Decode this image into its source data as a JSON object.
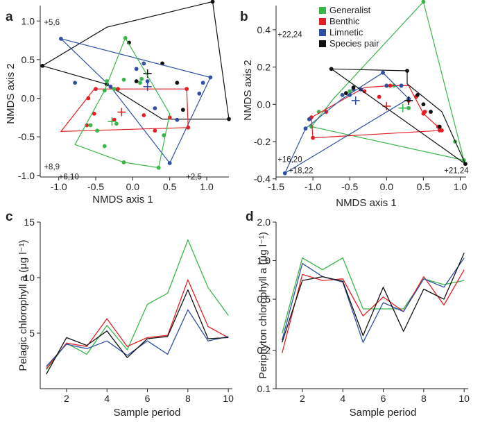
{
  "colors": {
    "Generalist": "#3ab54a",
    "Benthic": "#e31e24",
    "Limnetic": "#2e4fa3",
    "Species pair": "#111111"
  },
  "chart_data": [
    {
      "id": "a",
      "type": "scatter",
      "panel_label": "a",
      "xlabel": "NMDS axis 1",
      "ylabel": "NMDS axis 2",
      "xlim": [
        -1.25,
        1.3
      ],
      "ylim": [
        -1.02,
        1.2
      ],
      "xticks": [
        -1.0,
        -0.5,
        0.0,
        0.5,
        1.0
      ],
      "yticks": [
        -1.0,
        -0.5,
        0.0,
        0.5,
        1.0
      ],
      "annotations": [
        {
          "text": "+5,6",
          "x": -1.2,
          "y": 0.95
        },
        {
          "text": "+8,9",
          "x": -1.2,
          "y": -0.92
        },
        {
          "text": "+6,10",
          "x": -1.0,
          "y": -1.05
        },
        {
          "text": "+2,5",
          "x": 0.72,
          "y": -1.05
        }
      ],
      "series": [
        {
          "name": "Species pair",
          "points": [
            [
              -1.22,
              0.42
            ],
            [
              -0.35,
              0.18
            ],
            [
              -0.05,
              0.72
            ],
            [
              0.05,
              0.22
            ],
            [
              0.4,
              0.45
            ],
            [
              0.6,
              0.2
            ],
            [
              0.68,
              -0.15
            ],
            [
              1.08,
              1.25
            ],
            [
              1.3,
              -0.27
            ]
          ],
          "hull": [
            [
              -1.22,
              0.42
            ],
            [
              -0.35,
              0.92
            ],
            [
              1.08,
              1.25
            ],
            [
              1.3,
              -0.27
            ],
            [
              0.4,
              -0.27
            ],
            [
              -0.35,
              0.18
            ]
          ],
          "centroid": [
            0.2,
            0.32
          ]
        },
        {
          "name": "Limnetic",
          "points": [
            [
              -0.97,
              0.77
            ],
            [
              -0.78,
              0.2
            ],
            [
              -0.3,
              0.15
            ],
            [
              0.05,
              0.38
            ],
            [
              0.15,
              0.45
            ],
            [
              0.2,
              0.22
            ],
            [
              0.3,
              -0.13
            ],
            [
              0.6,
              -0.28
            ],
            [
              0.9,
              0.06
            ],
            [
              1.05,
              0.27
            ],
            [
              0.95,
              0.2
            ],
            [
              0.5,
              -0.84
            ]
          ],
          "hull": [
            [
              -0.97,
              0.77
            ],
            [
              1.05,
              0.27
            ],
            [
              0.5,
              -0.84
            ],
            [
              -0.3,
              0.15
            ]
          ],
          "centroid": [
            0.2,
            0.15
          ]
        },
        {
          "name": "Benthic",
          "points": [
            [
              -0.5,
              0.12
            ],
            [
              -0.6,
              0.0
            ],
            [
              -0.52,
              -0.2
            ],
            [
              -0.25,
              -0.28
            ],
            [
              -0.2,
              0.12
            ],
            [
              0.15,
              -0.22
            ],
            [
              0.3,
              -0.42
            ],
            [
              0.5,
              -0.25
            ],
            [
              0.75,
              -0.38
            ],
            [
              0.73,
              0.12
            ],
            [
              -0.62,
              -0.35
            ]
          ],
          "hull": [
            [
              -0.5,
              0.12
            ],
            [
              0.73,
              0.12
            ],
            [
              0.75,
              -0.38
            ],
            [
              -0.97,
              -0.43
            ],
            [
              -0.52,
              0.12
            ]
          ],
          "centroid": [
            -0.15,
            -0.18
          ]
        },
        {
          "name": "Generalist",
          "points": [
            [
              -0.35,
              0.22
            ],
            [
              -0.25,
              0.12
            ],
            [
              -0.12,
              0.24
            ],
            [
              0.12,
              0.25
            ],
            [
              -0.48,
              -0.42
            ],
            [
              -0.38,
              -0.62
            ],
            [
              -0.22,
              -0.33
            ],
            [
              -0.12,
              -0.83
            ],
            [
              0.1,
              0.2
            ],
            [
              0.35,
              -0.9
            ],
            [
              0.42,
              -0.48
            ],
            [
              -0.1,
              0.78
            ],
            [
              -0.57,
              -0.35
            ],
            [
              -0.38,
              0.1
            ]
          ],
          "hull": [
            [
              -0.1,
              0.78
            ],
            [
              0.5,
              -0.2
            ],
            [
              0.35,
              -0.9
            ],
            [
              -0.12,
              -0.83
            ],
            [
              -0.78,
              -0.6
            ],
            [
              -0.38,
              0.1
            ]
          ],
          "centroid": [
            -0.28,
            -0.3
          ]
        }
      ]
    },
    {
      "id": "b",
      "type": "scatter",
      "panel_label": "b",
      "xlabel": "NMDS axis 1",
      "ylabel": "NMDS axis 2",
      "xlim": [
        -1.5,
        1.08
      ],
      "ylim": [
        -0.39,
        0.53
      ],
      "xticks": [
        -1.5,
        -1.0,
        -0.5,
        0.0,
        0.5,
        1.0
      ],
      "yticks": [
        -0.4,
        -0.2,
        0.0,
        0.2,
        0.4
      ],
      "legend": {
        "position": "top",
        "entries": [
          "Generalist",
          "Benthic",
          "Limnetic",
          "Species pair"
        ]
      },
      "annotations": [
        {
          "text": "+22,24",
          "x": -1.48,
          "y": 0.36
        },
        {
          "text": "+16,20",
          "x": -1.48,
          "y": -0.31
        },
        {
          "text": "+18,22",
          "x": -1.33,
          "y": -0.37
        },
        {
          "text": "+21,24",
          "x": 0.78,
          "y": -0.37
        }
      ],
      "series": [
        {
          "name": "Generalist",
          "points": [
            [
              -1.02,
              -0.12
            ],
            [
              -0.92,
              -0.04
            ],
            [
              -0.6,
              0.05
            ],
            [
              -0.5,
              0.07
            ],
            [
              0.0,
              0.1
            ],
            [
              0.1,
              0.1
            ],
            [
              0.3,
              -0.02
            ],
            [
              0.5,
              0.55
            ],
            [
              0.72,
              -0.13
            ],
            [
              0.93,
              -0.2
            ],
            [
              1.05,
              -0.3
            ],
            [
              0.2,
              0.1
            ]
          ],
          "hull": [
            [
              0.5,
              0.55
            ],
            [
              1.05,
              -0.3
            ],
            [
              -1.02,
              -0.12
            ],
            [
              -0.72,
              0.03
            ]
          ],
          "centroid": [
            0.22,
            -0.02
          ]
        },
        {
          "name": "Benthic",
          "points": [
            [
              -1.02,
              -0.07
            ],
            [
              -1.0,
              -0.18
            ],
            [
              -0.82,
              -0.04
            ],
            [
              -0.3,
              0.07
            ],
            [
              -0.1,
              0.04
            ],
            [
              0.05,
              0.1
            ],
            [
              0.2,
              0.1
            ],
            [
              0.4,
              0.04
            ],
            [
              0.5,
              -0.05
            ],
            [
              0.52,
              -0.04
            ],
            [
              0.7,
              -0.12
            ],
            [
              0.75,
              -0.14
            ],
            [
              0.72,
              -0.14
            ],
            [
              0.3,
              0.02
            ]
          ],
          "hull": [
            [
              -1.02,
              -0.07
            ],
            [
              -0.3,
              0.09
            ],
            [
              0.05,
              0.1
            ],
            [
              0.3,
              0.1
            ],
            [
              0.5,
              -0.05
            ],
            [
              0.75,
              -0.14
            ],
            [
              -1.0,
              -0.18
            ]
          ],
          "centroid": [
            0.0,
            -0.01
          ]
        },
        {
          "name": "Limnetic",
          "points": [
            [
              -1.38,
              -0.37
            ],
            [
              -1.1,
              -0.13
            ],
            [
              -1.05,
              -0.08
            ],
            [
              -0.6,
              0.05
            ],
            [
              -0.5,
              0.05
            ],
            [
              -0.45,
              0.08
            ],
            [
              -0.35,
              0.08
            ],
            [
              -0.05,
              0.17
            ],
            [
              0.0,
              0.1
            ],
            [
              0.2,
              0.1
            ],
            [
              0.3,
              0.03
            ]
          ],
          "hull": [
            [
              -1.38,
              -0.37
            ],
            [
              -1.1,
              -0.13
            ],
            [
              -0.6,
              0.03
            ],
            [
              -0.05,
              0.17
            ],
            [
              0.3,
              0.03
            ]
          ],
          "centroid": [
            -0.42,
            0.02
          ]
        },
        {
          "name": "Species pair",
          "points": [
            [
              -0.75,
              0.19
            ],
            [
              -0.55,
              0.06
            ],
            [
              -0.45,
              0.09
            ],
            [
              0.28,
              0.18
            ],
            [
              0.42,
              0.05
            ],
            [
              0.5,
              0.0
            ],
            [
              0.6,
              -0.04
            ],
            [
              0.72,
              -0.12
            ],
            [
              1.07,
              -0.32
            ]
          ],
          "hull": [
            [
              -0.75,
              0.19
            ],
            [
              0.28,
              0.18
            ],
            [
              0.28,
              0.11
            ],
            [
              0.75,
              -0.04
            ],
            [
              1.07,
              -0.32
            ]
          ],
          "centroid": [
            0.3,
            0.02
          ]
        }
      ]
    },
    {
      "id": "c",
      "type": "line",
      "panel_label": "c",
      "xlabel": "Sample period",
      "ylabel": "Pelagic chlorophyll a (μg l⁻¹)",
      "xlim": [
        0.7,
        10.2
      ],
      "ylim": [
        0,
        15
      ],
      "xticks": [
        2,
        4,
        6,
        8,
        10
      ],
      "yticks": [
        5,
        10,
        15
      ],
      "x": [
        1,
        2,
        3,
        4,
        5,
        6,
        7,
        8,
        9,
        10
      ],
      "series": [
        {
          "name": "Generalist",
          "values": [
            1.7,
            4.1,
            3.1,
            5.7,
            3.5,
            7.6,
            8.6,
            13.4,
            9.1,
            6.6
          ]
        },
        {
          "name": "Benthic",
          "values": [
            1.8,
            4.1,
            3.8,
            6.3,
            3.8,
            4.6,
            4.8,
            9.8,
            5.6,
            4.6
          ]
        },
        {
          "name": "Limnetic",
          "values": [
            2.0,
            4.0,
            3.6,
            4.3,
            3.0,
            4.3,
            3.1,
            7.1,
            4.3,
            4.7
          ]
        },
        {
          "name": "Species pair",
          "values": [
            1.3,
            4.6,
            3.9,
            5.2,
            2.8,
            4.5,
            4.7,
            8.9,
            4.5,
            4.6
          ]
        }
      ]
    },
    {
      "id": "d",
      "type": "line",
      "panel_label": "d",
      "xlabel": "Sample period",
      "ylabel": "Periphyton chlorophyll a (μg l⁻¹)",
      "yscale": "log",
      "xlim": [
        0.7,
        10.2
      ],
      "ylim": [
        0.1,
        2.0
      ],
      "xticks": [
        2,
        4,
        6,
        8,
        10
      ],
      "yticks": [
        0.1,
        0.2,
        0.5,
        1.0,
        2.0
      ],
      "x": [
        1,
        2,
        3,
        4,
        5,
        6,
        7,
        8,
        9,
        10
      ],
      "series": [
        {
          "name": "Generalist",
          "values": [
            0.27,
            1.05,
            0.85,
            1.05,
            0.42,
            0.42,
            0.42,
            0.72,
            0.65,
            0.7
          ]
        },
        {
          "name": "Benthic",
          "values": [
            0.19,
            0.78,
            0.7,
            0.72,
            0.37,
            0.52,
            0.4,
            0.75,
            0.45,
            0.85
          ]
        },
        {
          "name": "Limnetic",
          "values": [
            0.24,
            0.95,
            0.75,
            0.68,
            0.23,
            0.47,
            0.4,
            0.72,
            0.62,
            1.05
          ]
        },
        {
          "name": "Species pair",
          "values": [
            0.23,
            0.7,
            0.75,
            0.69,
            0.26,
            0.62,
            0.28,
            0.6,
            0.5,
            1.15
          ]
        }
      ]
    }
  ]
}
